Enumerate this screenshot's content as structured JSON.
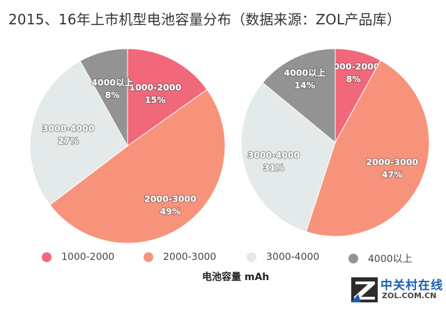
{
  "title": "2015、16年上市机型电池容量分布（数据来源：ZOL产品库）",
  "chart_data": [
    {
      "type": "pie",
      "slices": [
        {
          "label": "1000-2000",
          "value": 15,
          "value_label": "15%"
        },
        {
          "label": "2000-3000",
          "value": 49,
          "value_label": "49%"
        },
        {
          "label": "3000-4000",
          "value": 27,
          "value_label": "27%"
        },
        {
          "label": "4000以上",
          "value": 8,
          "value_label": "8%"
        }
      ]
    },
    {
      "type": "pie",
      "slices": [
        {
          "label": "1000-2000",
          "value": 8,
          "value_label": "8%"
        },
        {
          "label": "2000-3000",
          "value": 47,
          "value_label": "47%"
        },
        {
          "label": "3000-4000",
          "value": 31,
          "value_label": "31%"
        },
        {
          "label": "4000以上",
          "value": 14,
          "value_label": "14%"
        }
      ]
    }
  ],
  "colors": {
    "1000-2000": "#f0687a",
    "2000-3000": "#f7937b",
    "3000-4000": "#e4eae9",
    "4000以上": "#939393"
  },
  "legend": [
    {
      "label": "1000-2000"
    },
    {
      "label": "2000-3000"
    },
    {
      "label": "3000-4000"
    },
    {
      "label": "4000以上"
    }
  ],
  "xlabel": "电池容量 mAh",
  "watermark": {
    "name_cn": "中关村在线",
    "url": "ZOL.COM.CN"
  }
}
